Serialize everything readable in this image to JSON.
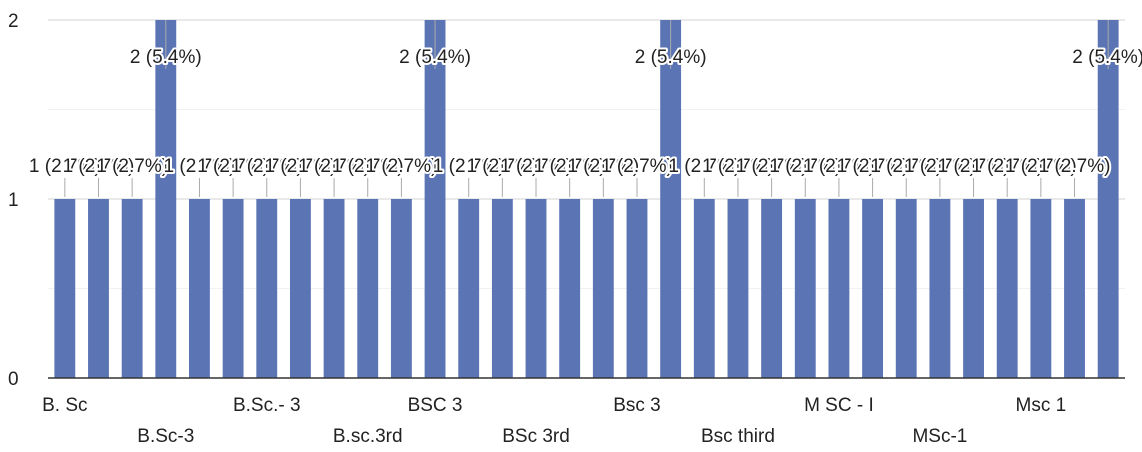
{
  "chart_data": {
    "type": "bar",
    "title": "",
    "xlabel": "",
    "ylabel": "",
    "ylim": [
      0,
      2
    ],
    "yticks": [
      0,
      1,
      2
    ],
    "grid": true,
    "legend": "none",
    "bar_color": "#5b74b4",
    "label_format": "{v} ({p})",
    "categories": [
      "B. Sc",
      "",
      "",
      "B.Sc-3",
      "",
      "",
      "B.Sc.- 3",
      "",
      "",
      "B.sc.3rd",
      "",
      "BSC 3",
      "",
      "",
      "BSc 3rd",
      "",
      "",
      "Bsc 3",
      "",
      "",
      "Bsc third",
      "",
      "",
      "M SC - I",
      "",
      "",
      "MSc-1",
      "",
      "",
      "Msc 1",
      "",
      ""
    ],
    "values": [
      1,
      1,
      1,
      2,
      1,
      1,
      1,
      1,
      1,
      1,
      1,
      2,
      1,
      1,
      1,
      1,
      1,
      1,
      2,
      1,
      1,
      1,
      1,
      1,
      1,
      1,
      1,
      1,
      1,
      1,
      1,
      2
    ],
    "percentages": [
      "2.7%",
      "2.7%",
      "2.7%",
      "5.4%",
      "2.7%",
      "2.7%",
      "2.7%",
      "2.7%",
      "2.7%",
      "2.7%",
      "2.7%",
      "5.4%",
      "2.7%",
      "2.7%",
      "2.7%",
      "2.7%",
      "2.7%",
      "2.7%",
      "5.4%",
      "2.7%",
      "2.7%",
      "2.7%",
      "2.7%",
      "2.7%",
      "2.7%",
      "2.7%",
      "2.7%",
      "2.7%",
      "2.7%",
      "2.7%",
      "2.7%",
      "5.4%"
    ]
  }
}
